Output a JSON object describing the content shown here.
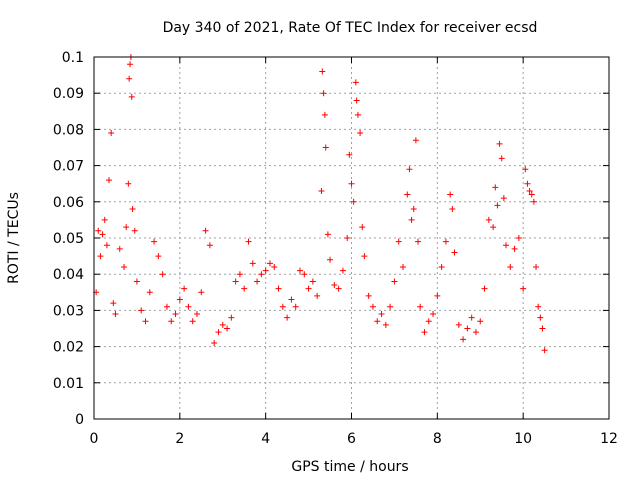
{
  "chart_data": {
    "type": "scatter",
    "title": "Day 340 of 2021, Rate Of TEC Index for receiver ecsd",
    "xlabel": "GPS time / hours",
    "ylabel": "ROTI / TECUs",
    "xlim": [
      0,
      12
    ],
    "ylim": [
      0,
      0.1
    ],
    "xticks": [
      0,
      2,
      4,
      6,
      8,
      10,
      12
    ],
    "yticks": [
      0,
      0.01,
      0.02,
      0.03,
      0.04,
      0.05,
      0.06,
      0.07,
      0.08,
      0.09,
      0.1
    ],
    "xtick_labels": [
      "0",
      "2",
      "4",
      "6",
      "8",
      "10",
      "12"
    ],
    "ytick_labels": [
      "0",
      "0.01",
      "0.02",
      "0.03",
      "0.04",
      "0.05",
      "0.06",
      "0.07",
      "0.08",
      "0.09",
      "0.1"
    ],
    "grid": true,
    "marker": "+",
    "color": "#ff0000",
    "series": [
      {
        "points": [
          [
            0.05,
            0.035
          ],
          [
            0.1,
            0.052
          ],
          [
            0.15,
            0.045
          ],
          [
            0.2,
            0.051
          ],
          [
            0.25,
            0.055
          ],
          [
            0.3,
            0.048
          ],
          [
            0.35,
            0.066
          ],
          [
            0.4,
            0.079
          ],
          [
            0.45,
            0.032
          ],
          [
            0.5,
            0.029
          ],
          [
            0.6,
            0.047
          ],
          [
            0.7,
            0.042
          ],
          [
            0.75,
            0.053
          ],
          [
            0.8,
            0.065
          ],
          [
            0.82,
            0.094
          ],
          [
            0.84,
            0.098
          ],
          [
            0.86,
            0.1
          ],
          [
            0.88,
            0.089
          ],
          [
            0.9,
            0.058
          ],
          [
            0.95,
            0.052
          ],
          [
            1.0,
            0.038
          ],
          [
            1.1,
            0.03
          ],
          [
            1.2,
            0.027
          ],
          [
            1.3,
            0.035
          ],
          [
            1.4,
            0.049
          ],
          [
            1.5,
            0.045
          ],
          [
            1.6,
            0.04
          ],
          [
            1.7,
            0.031
          ],
          [
            1.8,
            0.027
          ],
          [
            1.9,
            0.029
          ],
          [
            2.0,
            0.033
          ],
          [
            2.1,
            0.036
          ],
          [
            2.2,
            0.031
          ],
          [
            2.3,
            0.027
          ],
          [
            2.4,
            0.029
          ],
          [
            2.5,
            0.035
          ],
          [
            2.6,
            0.052
          ],
          [
            2.7,
            0.048
          ],
          [
            2.8,
            0.021
          ],
          [
            2.9,
            0.024
          ],
          [
            3.0,
            0.026
          ],
          [
            3.1,
            0.025
          ],
          [
            3.2,
            0.028
          ],
          [
            3.3,
            0.038
          ],
          [
            3.4,
            0.04
          ],
          [
            3.5,
            0.036
          ],
          [
            3.6,
            0.049
          ],
          [
            3.7,
            0.043
          ],
          [
            3.8,
            0.038
          ],
          [
            3.9,
            0.04
          ],
          [
            4.0,
            0.041
          ],
          [
            4.1,
            0.043
          ],
          [
            4.2,
            0.042
          ],
          [
            4.3,
            0.036
          ],
          [
            4.4,
            0.031
          ],
          [
            4.5,
            0.028
          ],
          [
            4.6,
            0.033
          ],
          [
            4.7,
            0.031
          ],
          [
            4.8,
            0.041
          ],
          [
            4.9,
            0.04
          ],
          [
            5.0,
            0.036
          ],
          [
            5.1,
            0.038
          ],
          [
            5.2,
            0.034
          ],
          [
            5.3,
            0.063
          ],
          [
            5.32,
            0.096
          ],
          [
            5.35,
            0.09
          ],
          [
            5.38,
            0.084
          ],
          [
            5.4,
            0.075
          ],
          [
            5.45,
            0.051
          ],
          [
            5.5,
            0.044
          ],
          [
            5.6,
            0.037
          ],
          [
            5.7,
            0.036
          ],
          [
            5.8,
            0.041
          ],
          [
            5.9,
            0.05
          ],
          [
            5.95,
            0.073
          ],
          [
            6.0,
            0.065
          ],
          [
            6.05,
            0.06
          ],
          [
            6.1,
            0.093
          ],
          [
            6.12,
            0.088
          ],
          [
            6.15,
            0.084
          ],
          [
            6.2,
            0.079
          ],
          [
            6.25,
            0.053
          ],
          [
            6.3,
            0.045
          ],
          [
            6.4,
            0.034
          ],
          [
            6.5,
            0.031
          ],
          [
            6.6,
            0.027
          ],
          [
            6.7,
            0.029
          ],
          [
            6.8,
            0.026
          ],
          [
            6.9,
            0.031
          ],
          [
            7.0,
            0.038
          ],
          [
            7.1,
            0.049
          ],
          [
            7.2,
            0.042
          ],
          [
            7.3,
            0.062
          ],
          [
            7.35,
            0.069
          ],
          [
            7.4,
            0.055
          ],
          [
            7.45,
            0.058
          ],
          [
            7.5,
            0.077
          ],
          [
            7.55,
            0.049
          ],
          [
            7.6,
            0.031
          ],
          [
            7.7,
            0.024
          ],
          [
            7.8,
            0.027
          ],
          [
            7.9,
            0.029
          ],
          [
            8.0,
            0.034
          ],
          [
            8.1,
            0.042
          ],
          [
            8.2,
            0.049
          ],
          [
            8.3,
            0.062
          ],
          [
            8.35,
            0.058
          ],
          [
            8.4,
            0.046
          ],
          [
            8.5,
            0.026
          ],
          [
            8.6,
            0.022
          ],
          [
            8.7,
            0.025
          ],
          [
            8.8,
            0.028
          ],
          [
            8.9,
            0.024
          ],
          [
            9.0,
            0.027
          ],
          [
            9.1,
            0.036
          ],
          [
            9.2,
            0.055
          ],
          [
            9.3,
            0.053
          ],
          [
            9.35,
            0.064
          ],
          [
            9.4,
            0.059
          ],
          [
            9.45,
            0.076
          ],
          [
            9.5,
            0.072
          ],
          [
            9.55,
            0.061
          ],
          [
            9.6,
            0.048
          ],
          [
            9.7,
            0.042
          ],
          [
            9.8,
            0.047
          ],
          [
            9.9,
            0.05
          ],
          [
            10.0,
            0.036
          ],
          [
            10.05,
            0.069
          ],
          [
            10.1,
            0.065
          ],
          [
            10.15,
            0.063
          ],
          [
            10.2,
            0.062
          ],
          [
            10.25,
            0.06
          ],
          [
            10.3,
            0.042
          ],
          [
            10.35,
            0.031
          ],
          [
            10.4,
            0.028
          ],
          [
            10.45,
            0.025
          ],
          [
            10.5,
            0.019
          ]
        ]
      }
    ]
  }
}
